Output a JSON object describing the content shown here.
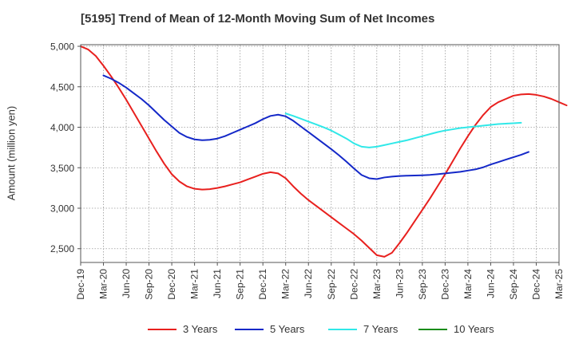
{
  "title": "[5195]  Trend of Mean of 12-Month Moving Sum of Net Incomes",
  "chart_data": {
    "type": "line",
    "title": "[5195]  Trend of Mean of 12-Month Moving Sum of Net Incomes",
    "xlabel": "",
    "ylabel": "Amount (million yen)",
    "x_tick_labels": [
      "Dec-19",
      "Mar-20",
      "Jun-20",
      "Sep-20",
      "Dec-20",
      "Mar-21",
      "Jun-21",
      "Sep-21",
      "Dec-21",
      "Mar-22",
      "Jun-22",
      "Sep-22",
      "Dec-22",
      "Mar-23",
      "Jun-23",
      "Sep-23",
      "Dec-23",
      "Mar-24",
      "Jun-24",
      "Sep-24",
      "Dec-24",
      "Mar-25"
    ],
    "y_ticks": [
      2500,
      3000,
      3500,
      4000,
      4500,
      5000
    ],
    "y_tick_labels": [
      "2,500",
      "3,000",
      "3,500",
      "4,000",
      "4,500",
      "5,000"
    ],
    "ylim": [
      2330,
      5020
    ],
    "grid": true,
    "legend_position": "bottom",
    "series": [
      {
        "name": "3 Years",
        "color": "#e8201e",
        "start_index": 0,
        "values": [
          5000,
          4960,
          4880,
          4760,
          4630,
          4490,
          4340,
          4180,
          4020,
          3860,
          3700,
          3550,
          3420,
          3330,
          3270,
          3240,
          3230,
          3235,
          3250,
          3270,
          3295,
          3320,
          3355,
          3390,
          3425,
          3445,
          3430,
          3370,
          3270,
          3180,
          3100,
          3030,
          2960,
          2890,
          2820,
          2750,
          2680,
          2600,
          2510,
          2420,
          2400,
          2450,
          2570,
          2700,
          2840,
          2980,
          3120,
          3270,
          3420,
          3580,
          3740,
          3890,
          4030,
          4150,
          4250,
          4310,
          4350,
          4390,
          4405,
          4410,
          4400,
          4380,
          4350,
          4310,
          4270
        ]
      },
      {
        "name": "5 Years",
        "color": "#1428c8",
        "start_index": 3,
        "values": [
          4640,
          4600,
          4550,
          4490,
          4420,
          4350,
          4270,
          4180,
          4090,
          4010,
          3930,
          3880,
          3850,
          3840,
          3845,
          3860,
          3890,
          3930,
          3970,
          4010,
          4050,
          4100,
          4140,
          4155,
          4135,
          4080,
          4010,
          3940,
          3870,
          3800,
          3730,
          3655,
          3575,
          3490,
          3410,
          3370,
          3360,
          3380,
          3390,
          3398,
          3402,
          3404,
          3407,
          3412,
          3420,
          3430,
          3440,
          3450,
          3465,
          3480,
          3505,
          3540,
          3570,
          3600,
          3630,
          3660,
          3695
        ]
      },
      {
        "name": "7 Years",
        "color": "#30e8e8",
        "start_index": 27,
        "values": [
          4170,
          4140,
          4105,
          4070,
          4035,
          4000,
          3960,
          3910,
          3860,
          3800,
          3760,
          3750,
          3760,
          3780,
          3800,
          3820,
          3840,
          3865,
          3890,
          3915,
          3940,
          3960,
          3975,
          3990,
          4000,
          4010,
          4020,
          4030,
          4040,
          4045,
          4050,
          4055
        ]
      },
      {
        "name": "10 Years",
        "color": "#1a8c1a",
        "start_index": 0,
        "values": []
      }
    ]
  }
}
